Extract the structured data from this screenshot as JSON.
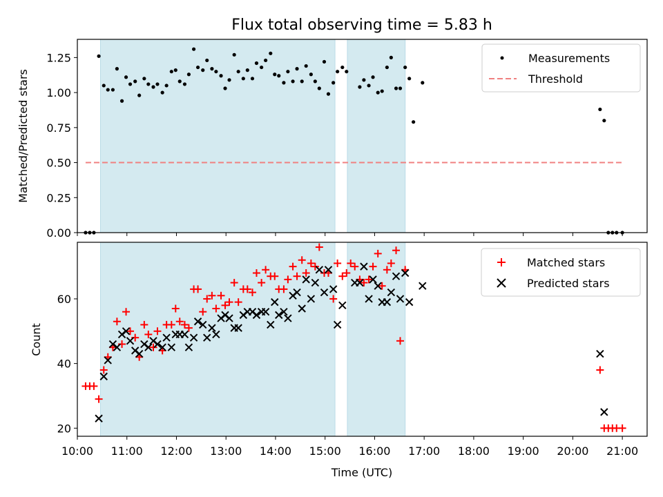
{
  "figure": {
    "title": "Flux total observing time = 5.83 h"
  },
  "chart_data": [
    {
      "type": "scatter",
      "panel": "top",
      "ylabel": "Matched/Predicted stars",
      "xlabel": "",
      "xlim": [
        "10:00",
        "21:30"
      ],
      "ylim": [
        0.0,
        1.38
      ],
      "yticks": [
        "0.00",
        "0.25",
        "0.50",
        "0.75",
        "1.00",
        "1.25"
      ],
      "ytick_values": [
        0.0,
        0.25,
        0.5,
        0.75,
        1.0,
        1.25
      ],
      "legend": {
        "position": "top-right",
        "entries": [
          "Measurements",
          "Threshold"
        ]
      },
      "highlight_spans": [
        [
          "10:28",
          "15:12"
        ],
        [
          "15:27",
          "16:37"
        ]
      ],
      "highlight_color": "#d4eaf0",
      "threshold": {
        "name": "Threshold",
        "y": 0.5,
        "x_range": [
          "10:10",
          "21:00"
        ],
        "color": "#f08080",
        "style": "dashed"
      },
      "series": [
        {
          "name": "Measurements",
          "color": "#000000",
          "marker": "dot",
          "points": [
            [
              "10:10",
              0.0
            ],
            [
              "10:15",
              0.0
            ],
            [
              "10:20",
              0.0
            ],
            [
              "10:26",
              1.26
            ],
            [
              "10:32",
              1.05
            ],
            [
              "10:37",
              1.02
            ],
            [
              "10:43",
              1.02
            ],
            [
              "10:48",
              1.17
            ],
            [
              "10:54",
              0.94
            ],
            [
              "10:59",
              1.11
            ],
            [
              "11:04",
              1.06
            ],
            [
              "11:10",
              1.08
            ],
            [
              "11:15",
              0.98
            ],
            [
              "11:21",
              1.1
            ],
            [
              "11:26",
              1.06
            ],
            [
              "11:32",
              1.04
            ],
            [
              "11:37",
              1.06
            ],
            [
              "11:43",
              1.0
            ],
            [
              "11:48",
              1.05
            ],
            [
              "11:54",
              1.15
            ],
            [
              "11:59",
              1.16
            ],
            [
              "12:04",
              1.08
            ],
            [
              "12:10",
              1.06
            ],
            [
              "12:15",
              1.13
            ],
            [
              "12:21",
              1.31
            ],
            [
              "12:26",
              1.18
            ],
            [
              "12:32",
              1.16
            ],
            [
              "12:37",
              1.23
            ],
            [
              "12:43",
              1.17
            ],
            [
              "12:48",
              1.15
            ],
            [
              "12:54",
              1.12
            ],
            [
              "12:59",
              1.03
            ],
            [
              "13:04",
              1.09
            ],
            [
              "13:10",
              1.27
            ],
            [
              "13:15",
              1.15
            ],
            [
              "13:21",
              1.1
            ],
            [
              "13:26",
              1.16
            ],
            [
              "13:32",
              1.1
            ],
            [
              "13:37",
              1.21
            ],
            [
              "13:43",
              1.18
            ],
            [
              "13:48",
              1.23
            ],
            [
              "13:54",
              1.28
            ],
            [
              "13:59",
              1.13
            ],
            [
              "14:04",
              1.12
            ],
            [
              "14:10",
              1.07
            ],
            [
              "14:15",
              1.15
            ],
            [
              "14:21",
              1.08
            ],
            [
              "14:26",
              1.17
            ],
            [
              "14:32",
              1.08
            ],
            [
              "14:37",
              1.19
            ],
            [
              "14:43",
              1.13
            ],
            [
              "14:48",
              1.08
            ],
            [
              "14:53",
              1.03
            ],
            [
              "14:59",
              1.22
            ],
            [
              "15:04",
              0.99
            ],
            [
              "15:10",
              1.07
            ],
            [
              "15:15",
              1.15
            ],
            [
              "15:21",
              1.18
            ],
            [
              "15:26",
              1.15
            ],
            [
              "15:42",
              1.04
            ],
            [
              "15:47",
              1.09
            ],
            [
              "15:53",
              1.05
            ],
            [
              "15:58",
              1.11
            ],
            [
              "16:04",
              1.0
            ],
            [
              "16:09",
              1.01
            ],
            [
              "16:15",
              1.18
            ],
            [
              "16:20",
              1.25
            ],
            [
              "16:26",
              1.03
            ],
            [
              "16:31",
              1.03
            ],
            [
              "16:37",
              1.18
            ],
            [
              "16:42",
              1.1
            ],
            [
              "16:47",
              0.79
            ],
            [
              "16:58",
              1.07
            ],
            [
              "20:33",
              0.88
            ],
            [
              "20:38",
              0.8
            ],
            [
              "20:43",
              0.0
            ],
            [
              "20:48",
              0.0
            ],
            [
              "20:53",
              0.0
            ],
            [
              "21:00",
              0.0
            ]
          ]
        }
      ]
    },
    {
      "type": "scatter",
      "panel": "bottom",
      "ylabel": "Count",
      "xlabel": "Time (UTC)",
      "xlim": [
        "10:00",
        "21:30"
      ],
      "ylim": [
        17.5,
        77.5
      ],
      "xticks": [
        "10:00",
        "11:00",
        "12:00",
        "13:00",
        "14:00",
        "15:00",
        "16:00",
        "17:00",
        "18:00",
        "19:00",
        "20:00",
        "21:00"
      ],
      "yticks": [
        "20",
        "40",
        "60"
      ],
      "ytick_values": [
        20,
        40,
        60
      ],
      "legend": {
        "position": "top-right",
        "entries": [
          "Matched stars",
          "Predicted stars"
        ]
      },
      "highlight_spans": [
        [
          "10:28",
          "15:12"
        ],
        [
          "15:27",
          "16:37"
        ]
      ],
      "highlight_color": "#d4eaf0",
      "series": [
        {
          "name": "Matched stars",
          "color": "#ff0000",
          "marker": "plus",
          "points": [
            [
              "10:10",
              33
            ],
            [
              "10:15",
              33
            ],
            [
              "10:20",
              33
            ],
            [
              "10:26",
              29
            ],
            [
              "10:32",
              38
            ],
            [
              "10:37",
              42
            ],
            [
              "10:43",
              45
            ],
            [
              "10:48",
              53
            ],
            [
              "10:54",
              46
            ],
            [
              "10:59",
              56
            ],
            [
              "11:04",
              50
            ],
            [
              "11:10",
              48
            ],
            [
              "11:15",
              42
            ],
            [
              "11:21",
              52
            ],
            [
              "11:26",
              49
            ],
            [
              "11:32",
              45
            ],
            [
              "11:37",
              50
            ],
            [
              "11:43",
              44
            ],
            [
              "11:48",
              52
            ],
            [
              "11:54",
              52
            ],
            [
              "11:59",
              57
            ],
            [
              "12:04",
              53
            ],
            [
              "12:10",
              52
            ],
            [
              "12:15",
              51
            ],
            [
              "12:21",
              63
            ],
            [
              "12:26",
              63
            ],
            [
              "12:32",
              56
            ],
            [
              "12:37",
              60
            ],
            [
              "12:43",
              61
            ],
            [
              "12:48",
              57
            ],
            [
              "12:54",
              61
            ],
            [
              "12:59",
              58
            ],
            [
              "13:04",
              59
            ],
            [
              "13:10",
              65
            ],
            [
              "13:15",
              59
            ],
            [
              "13:21",
              63
            ],
            [
              "13:26",
              63
            ],
            [
              "13:32",
              62
            ],
            [
              "13:37",
              68
            ],
            [
              "13:43",
              65
            ],
            [
              "13:48",
              69
            ],
            [
              "13:54",
              67
            ],
            [
              "13:59",
              67
            ],
            [
              "14:04",
              63
            ],
            [
              "14:10",
              63
            ],
            [
              "14:15",
              66
            ],
            [
              "14:21",
              70
            ],
            [
              "14:26",
              67
            ],
            [
              "14:32",
              72
            ],
            [
              "14:37",
              68
            ],
            [
              "14:43",
              71
            ],
            [
              "14:48",
              70
            ],
            [
              "14:53",
              76
            ],
            [
              "14:59",
              68
            ],
            [
              "15:04",
              68
            ],
            [
              "15:10",
              60
            ],
            [
              "15:15",
              71
            ],
            [
              "15:21",
              67
            ],
            [
              "15:26",
              68
            ],
            [
              "15:31",
              71
            ],
            [
              "15:36",
              70
            ],
            [
              "15:42",
              66
            ],
            [
              "15:47",
              65
            ],
            [
              "15:53",
              66
            ],
            [
              "15:58",
              70
            ],
            [
              "16:04",
              74
            ],
            [
              "16:09",
              64
            ],
            [
              "16:15",
              69
            ],
            [
              "16:20",
              71
            ],
            [
              "16:26",
              75
            ],
            [
              "16:31",
              47
            ],
            [
              "16:37",
              69
            ],
            [
              "20:33",
              38
            ],
            [
              "20:38",
              20
            ],
            [
              "20:43",
              20
            ],
            [
              "20:48",
              20
            ],
            [
              "20:53",
              20
            ],
            [
              "21:00",
              20
            ]
          ]
        },
        {
          "name": "Predicted stars",
          "color": "#000000",
          "marker": "x",
          "points": [
            [
              "10:26",
              23
            ],
            [
              "10:32",
              36
            ],
            [
              "10:37",
              41
            ],
            [
              "10:43",
              46
            ],
            [
              "10:48",
              45
            ],
            [
              "10:54",
              49
            ],
            [
              "10:59",
              50
            ],
            [
              "11:04",
              47
            ],
            [
              "11:10",
              44
            ],
            [
              "11:15",
              43
            ],
            [
              "11:21",
              46
            ],
            [
              "11:26",
              45
            ],
            [
              "11:32",
              47
            ],
            [
              "11:37",
              46
            ],
            [
              "11:43",
              45
            ],
            [
              "11:48",
              48
            ],
            [
              "11:54",
              45
            ],
            [
              "11:59",
              49
            ],
            [
              "12:04",
              49
            ],
            [
              "12:10",
              49
            ],
            [
              "12:15",
              45
            ],
            [
              "12:21",
              48
            ],
            [
              "12:26",
              53
            ],
            [
              "12:32",
              52
            ],
            [
              "12:37",
              48
            ],
            [
              "12:43",
              51
            ],
            [
              "12:48",
              49
            ],
            [
              "12:54",
              54
            ],
            [
              "12:59",
              55
            ],
            [
              "13:04",
              54
            ],
            [
              "13:10",
              51
            ],
            [
              "13:15",
              51
            ],
            [
              "13:21",
              55
            ],
            [
              "13:26",
              56
            ],
            [
              "13:32",
              56
            ],
            [
              "13:37",
              55
            ],
            [
              "13:43",
              56
            ],
            [
              "13:48",
              56
            ],
            [
              "13:54",
              52
            ],
            [
              "13:59",
              59
            ],
            [
              "14:04",
              55
            ],
            [
              "14:10",
              56
            ],
            [
              "14:15",
              54
            ],
            [
              "14:21",
              61
            ],
            [
              "14:26",
              62
            ],
            [
              "14:32",
              57
            ],
            [
              "14:37",
              66
            ],
            [
              "14:43",
              60
            ],
            [
              "14:48",
              65
            ],
            [
              "14:53",
              69
            ],
            [
              "14:59",
              62
            ],
            [
              "15:04",
              69
            ],
            [
              "15:10",
              63
            ],
            [
              "15:15",
              52
            ],
            [
              "15:21",
              58
            ],
            [
              "15:36",
              65
            ],
            [
              "15:42",
              65
            ],
            [
              "15:47",
              70
            ],
            [
              "15:53",
              60
            ],
            [
              "15:58",
              66
            ],
            [
              "16:04",
              64
            ],
            [
              "16:09",
              59
            ],
            [
              "16:15",
              59
            ],
            [
              "16:20",
              62
            ],
            [
              "16:26",
              67
            ],
            [
              "16:31",
              60
            ],
            [
              "16:37",
              68
            ],
            [
              "16:42",
              59
            ],
            [
              "16:58",
              64
            ],
            [
              "20:33",
              43
            ],
            [
              "20:38",
              25
            ]
          ]
        }
      ]
    }
  ]
}
